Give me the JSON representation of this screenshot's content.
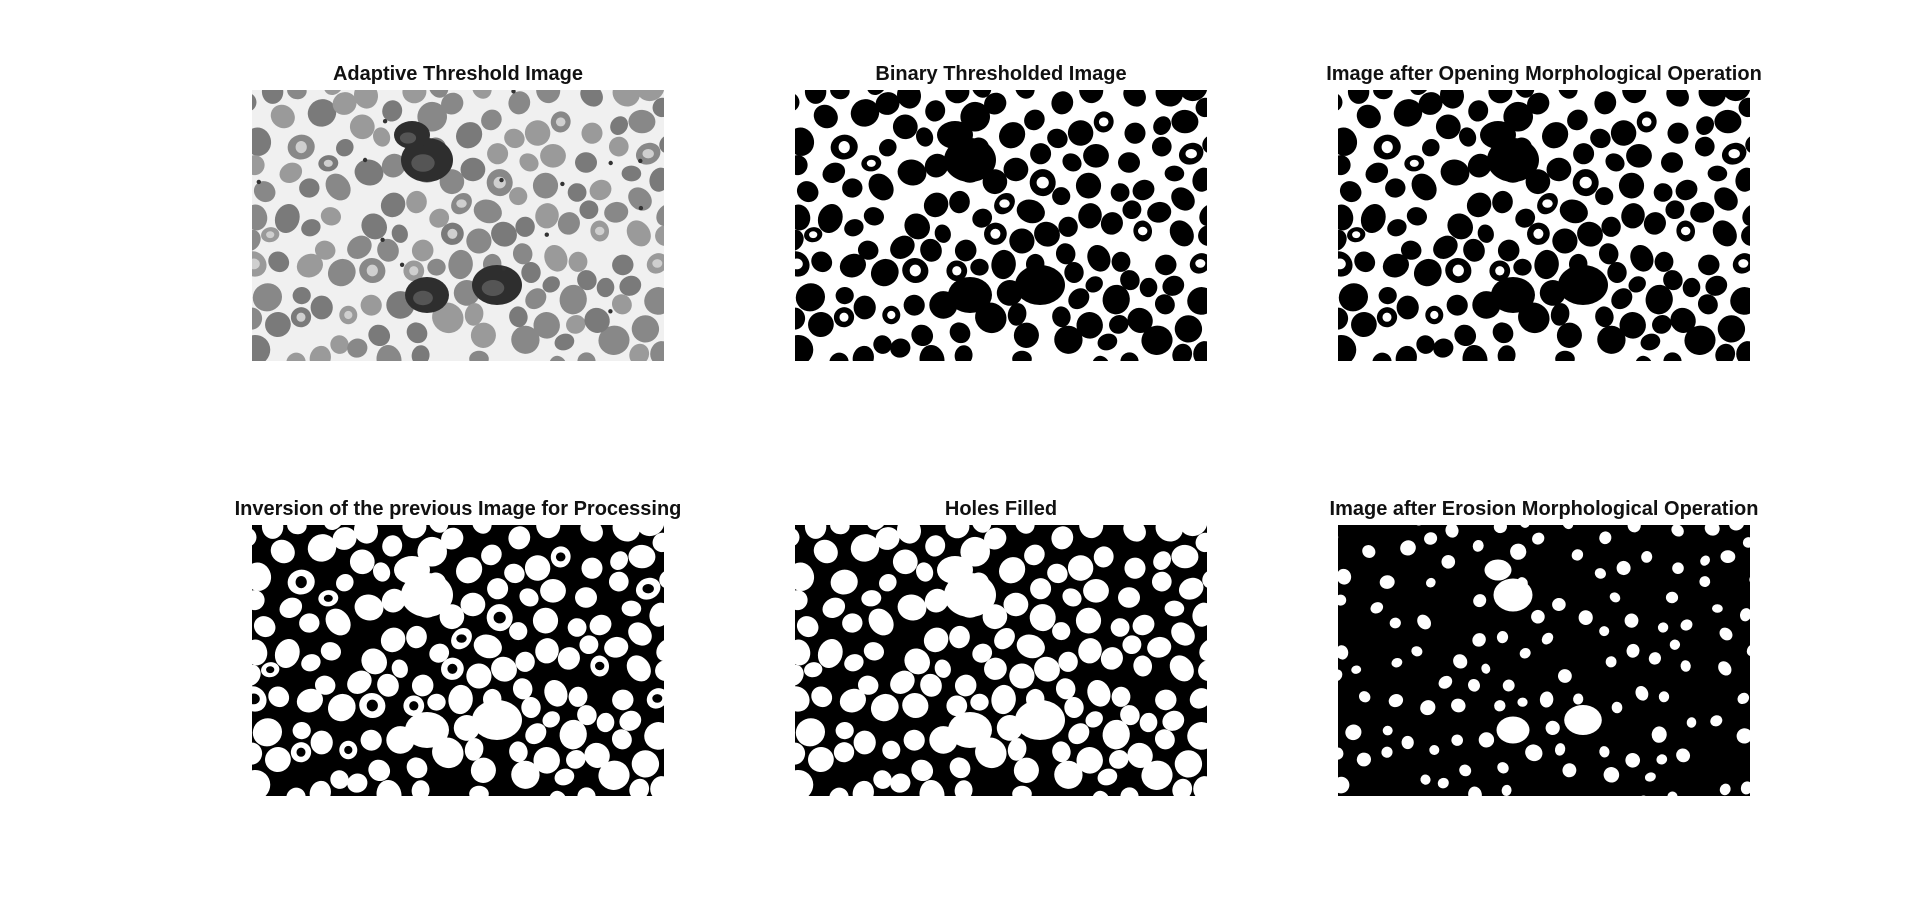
{
  "figure": {
    "panels": [
      {
        "title": "Adaptive Threshold Image",
        "style": "grayscale"
      },
      {
        "title": "Binary Thresholded Image",
        "style": "binary-dark-cells"
      },
      {
        "title": "Image after Opening Morphological Operation",
        "style": "binary-dark-cells"
      },
      {
        "title": "Inversion of the previous Image for Processing",
        "style": "binary-light-cells"
      },
      {
        "title": "Holes Filled",
        "style": "binary-light-cells"
      },
      {
        "title": "Image after Erosion Morphological Operation",
        "style": "binary-light-small"
      }
    ]
  },
  "colors": {
    "background": "#ffffff",
    "gray_background": "#f0f0f0",
    "gray_cell": "#8f8f8f",
    "black": "#000000",
    "white": "#ffffff"
  }
}
